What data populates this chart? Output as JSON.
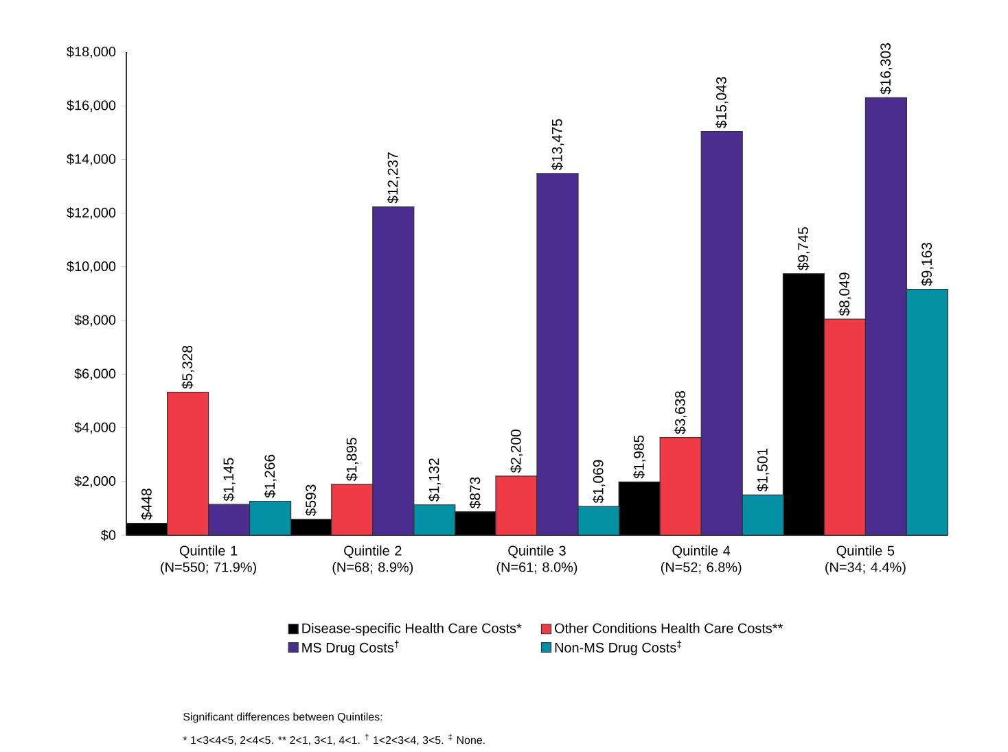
{
  "chart_data": {
    "type": "bar",
    "categories": [
      "Quintile 1 (N=550; 71.9%)",
      "Quintile 2 (N=68; 8.9%)",
      "Quintile 3 (N=61; 8.0%)",
      "Quintile 4 (N=52; 6.8%)",
      "Quintile 5 (N=34; 4.4%)"
    ],
    "series": [
      {
        "name": "Disease-specific Health Care Costs*",
        "color": "#000000",
        "values": [
          448,
          593,
          873,
          1985,
          9745
        ],
        "value_labels": [
          "$448",
          "$593",
          "$873",
          "$1,985",
          "$9,745"
        ]
      },
      {
        "name": "Other Conditions Health Care Costs**",
        "color": "#ee3b45",
        "values": [
          5328,
          1895,
          2200,
          3638,
          8049
        ],
        "value_labels": [
          "$5,328",
          "$1,895",
          "$2,200",
          "$3,638",
          "$8,049"
        ]
      },
      {
        "name": "MS Drug Costs$^{†}$",
        "color": "#4b2d8f",
        "values": [
          1145,
          12237,
          13475,
          15043,
          16303
        ],
        "value_labels": [
          "$1,145",
          "$12,237",
          "$13,475",
          "$15,043",
          "$16,303"
        ]
      },
      {
        "name": "Non-MS Drug Costs$^{‡}$",
        "color": "#0590a5",
        "values": [
          1266,
          1132,
          1069,
          1501,
          9163
        ],
        "value_labels": [
          "$1,266",
          "$1,132",
          "$1,069",
          "$1,501",
          "$9,163"
        ]
      }
    ],
    "ylim": [
      0,
      18000
    ],
    "yticks": [
      {
        "value": 0,
        "label": "$0"
      },
      {
        "value": 2000,
        "label": "$2,000"
      },
      {
        "value": 4000,
        "label": "$4,000"
      },
      {
        "value": 6000,
        "label": "$6,000"
      },
      {
        "value": 8000,
        "label": "$8,000"
      },
      {
        "value": 10000,
        "label": "$10,000"
      },
      {
        "value": 12000,
        "label": "$12,000"
      },
      {
        "value": 14000,
        "label": "$14,000"
      },
      {
        "value": 16000,
        "label": "$16,000"
      },
      {
        "value": 18000,
        "label": "$18,000"
      }
    ],
    "legend": "bottom",
    "annotations": [
      "Significant differences between Quintiles:",
      "* 1<3<4<5, 2<4<5.  ** 2<1, 3<1, 4<1.  $^{†}$ 1<2<3<4, 3<5.  $^{‡}$ None."
    ]
  }
}
